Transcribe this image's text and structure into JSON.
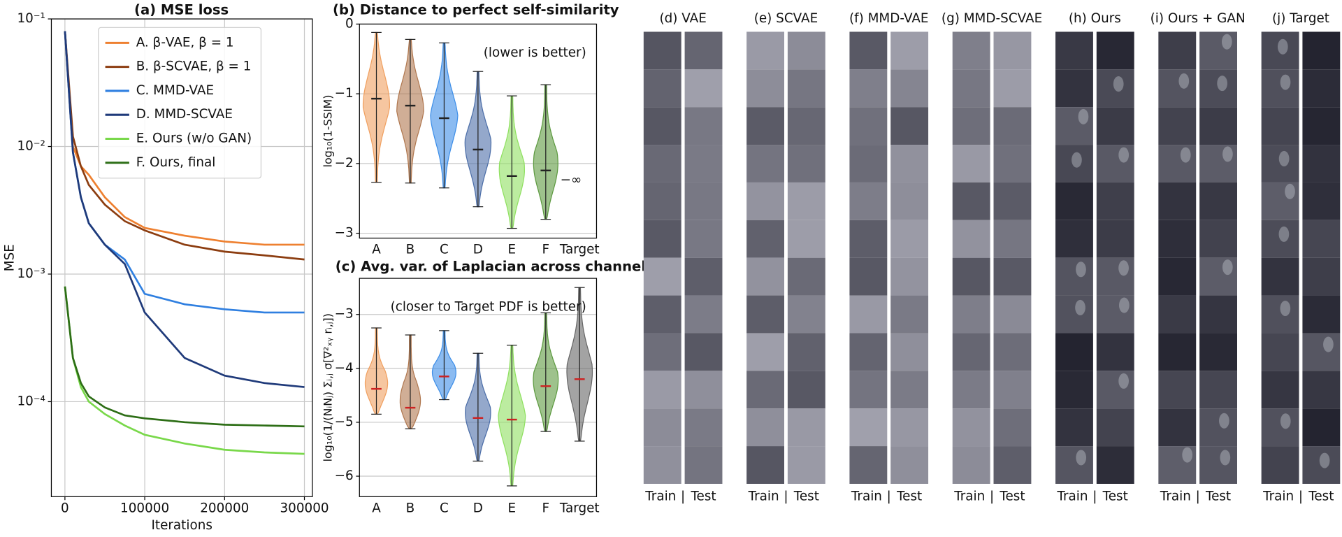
{
  "chart_data": [
    {
      "type": "line",
      "title": "(a) MSE loss",
      "x_label": "Iterations",
      "y_label": "MSE",
      "x": [
        0,
        10000,
        20000,
        30000,
        50000,
        75000,
        100000,
        150000,
        200000,
        250000,
        300000
      ],
      "xlim": [
        -17000,
        310000
      ],
      "xticks": [
        0,
        100000,
        200000,
        300000
      ],
      "ylim": [
        1.8e-05,
        0.1
      ],
      "yticks": [
        {
          "value": 0.1,
          "label": "10⁻¹"
        },
        {
          "value": 0.01,
          "label": "10⁻²"
        },
        {
          "value": 0.001,
          "label": "10⁻³"
        },
        {
          "value": 0.0001,
          "label": "10⁻⁴"
        }
      ],
      "log_scale": "y",
      "grid": true,
      "legend": "upper right",
      "series": [
        {
          "name": "A. β-VAE, β = 1",
          "color": "#ee8030",
          "values": [
            0.08,
            0.01,
            0.007,
            0.006,
            0.004,
            0.0028,
            0.0023,
            0.002,
            0.0018,
            0.0017,
            0.0017
          ]
        },
        {
          "name": "B. β-SCVAE, β = 1",
          "color": "#8c3d10",
          "values": [
            0.08,
            0.012,
            0.007,
            0.005,
            0.0035,
            0.0026,
            0.0022,
            0.0017,
            0.0015,
            0.0014,
            0.0013
          ]
        },
        {
          "name": "C. MMD-VAE",
          "color": "#2f7fe0",
          "values": [
            0.08,
            0.009,
            0.004,
            0.0025,
            0.0017,
            0.0013,
            0.0007,
            0.00058,
            0.00053,
            0.0005,
            0.0005
          ]
        },
        {
          "name": "D. MMD-SCVAE",
          "color": "#1f3a7a",
          "values": [
            0.08,
            0.009,
            0.004,
            0.0025,
            0.0017,
            0.0012,
            0.0005,
            0.00022,
            0.00016,
            0.00014,
            0.00013
          ]
        },
        {
          "name": "E. Ours (w/o GAN)",
          "color": "#79d84a",
          "values": [
            0.0008,
            0.00022,
            0.00013,
            0.0001,
            8e-05,
            6.5e-05,
            5.5e-05,
            4.7e-05,
            4.2e-05,
            4e-05,
            3.9e-05
          ]
        },
        {
          "name": "F. Ours, final",
          "color": "#2d6e16",
          "values": [
            0.0008,
            0.00022,
            0.00014,
            0.00011,
            9e-05,
            7.8e-05,
            7.4e-05,
            6.9e-05,
            6.6e-05,
            6.5e-05,
            6.4e-05
          ]
        }
      ]
    },
    {
      "type": "violin",
      "title": "(b) Distance to perfect self-similarity",
      "annotation": "(lower is better)",
      "y_label": "log₁₀(1-SSIM)",
      "missing_label": "−∞",
      "categories": [
        "A",
        "B",
        "C",
        "D",
        "E",
        "F",
        "Target"
      ],
      "colors": [
        "#f0a060",
        "#b07850",
        "#3d8ee8",
        "#4c6ea8",
        "#8fe060",
        "#5d9a40",
        "#666666"
      ],
      "values": [
        -1.07,
        -1.17,
        -1.35,
        -1.8,
        -2.18,
        -2.1,
        null
      ],
      "min": [
        -2.27,
        -2.28,
        -2.35,
        -2.62,
        -2.93,
        -2.8,
        null
      ],
      "max": [
        -0.12,
        -0.22,
        -0.27,
        -0.68,
        -1.03,
        -0.87,
        null
      ],
      "median_color": "#222222",
      "ylim": [
        -3.07,
        0
      ],
      "yticks": [
        0,
        {
          "value": -1,
          "label": "−1"
        },
        {
          "value": -2,
          "label": "−2"
        },
        {
          "value": -3,
          "label": "−3"
        }
      ],
      "grid": true
    },
    {
      "type": "violin",
      "title": "(c) Avg. var. of Laplacian across channels",
      "annotation": "(closer to Target PDF is better)",
      "y_label": "log₁₀(1/(NᵢNⱼ) Σᵢ,ⱼ σ[∇²ₓᵧ rᵢ,ⱼ])",
      "categories": [
        "A",
        "B",
        "C",
        "D",
        "E",
        "F",
        "Target"
      ],
      "colors": [
        "#f0a060",
        "#b07850",
        "#3d8ee8",
        "#4c6ea8",
        "#8fe060",
        "#5d9a40",
        "#666666"
      ],
      "values": [
        -4.38,
        -4.73,
        -4.15,
        -4.92,
        -4.95,
        -4.33,
        -4.2
      ],
      "min": [
        -4.85,
        -5.12,
        -4.58,
        -5.72,
        -6.18,
        -5.17,
        -5.35
      ],
      "max": [
        -3.25,
        -3.38,
        -3.3,
        -3.72,
        -3.57,
        -2.97,
        -2.5
      ],
      "median_color": "#cc2222",
      "ylim": [
        -6.38,
        -2.33
      ],
      "yticks": [
        {
          "value": -3,
          "label": "−3"
        },
        {
          "value": -4,
          "label": "−4"
        },
        {
          "value": -5,
          "label": "−5"
        },
        {
          "value": -6,
          "label": "−6"
        }
      ],
      "grid": true
    }
  ],
  "panels": {
    "titles": [
      "(d) VAE",
      "(e) SCVAE",
      "(f) MMD-VAE",
      "(g) MMD-SCVAE",
      "(h) Ours",
      "(i) Ours + GAN",
      "(j) Target"
    ],
    "footer": [
      "Train",
      "|",
      "Test"
    ]
  }
}
